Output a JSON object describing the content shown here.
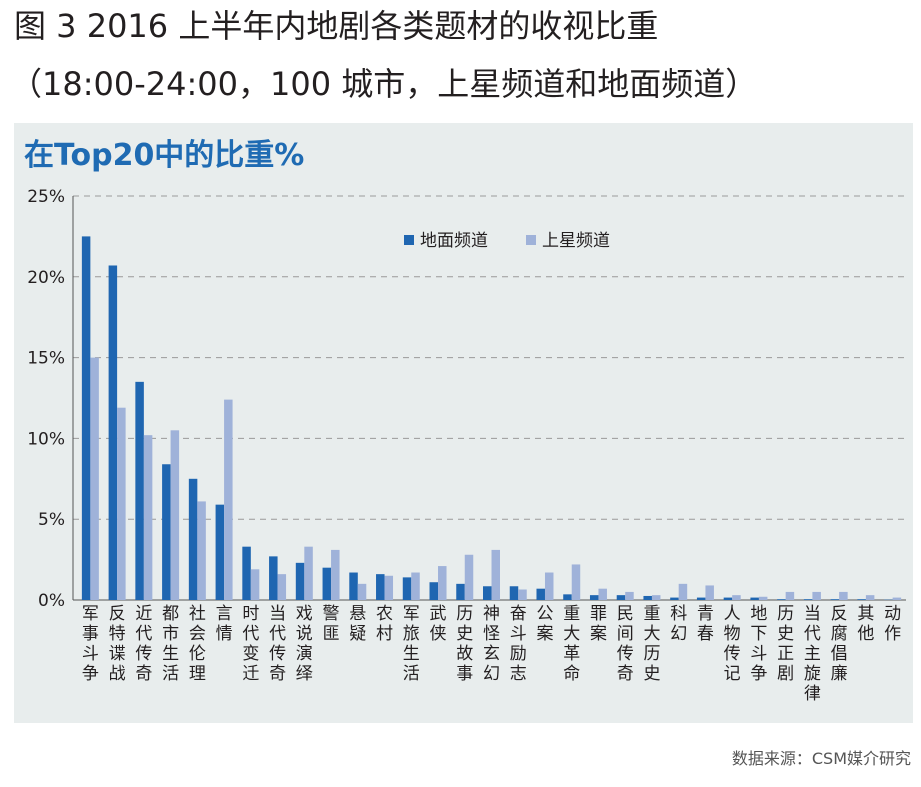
{
  "figure": {
    "title": "图 3 2016 上半年内地剧各类题材的收视比重",
    "subtitle": "（18:00-24:00，100 城市，上星频道和地面频道）",
    "source": "数据来源：CSM媒介研究"
  },
  "colors": {
    "ground": "#1f66b1",
    "satellite": "#9fb2d9",
    "panel_bg": "#e8eded",
    "title_blue": "#1f6bb3"
  },
  "chart_data": {
    "type": "bar",
    "title": "在Top20中的比重%",
    "xlabel": "",
    "ylabel": "",
    "ylim": [
      0,
      25
    ],
    "yticks": [
      0,
      5,
      10,
      15,
      20,
      25
    ],
    "ytick_labels": [
      "0%",
      "5%",
      "10%",
      "15%",
      "20%",
      "25%"
    ],
    "grid": true,
    "legend_position": "top-center",
    "categories": [
      "军事斗争",
      "反特谍战",
      "近代传奇",
      "都市生活",
      "社会伦理",
      "言情",
      "时代变迁",
      "当代传奇",
      "戏说演绎",
      "警匪",
      "悬疑",
      "农村",
      "军旅生活",
      "武侠",
      "历史故事",
      "神怪玄幻",
      "奋斗励志",
      "公案",
      "重大革命",
      "罪案",
      "民间传奇",
      "重大历史",
      "科幻",
      "青春",
      "人物传记",
      "地下斗争",
      "历史正剧",
      "当代主旋律",
      "反腐倡廉",
      "其他",
      "动作"
    ],
    "series": [
      {
        "name": "地面频道",
        "values": [
          22.5,
          20.7,
          13.5,
          8.4,
          7.5,
          5.9,
          3.3,
          2.7,
          2.3,
          2.0,
          1.7,
          1.6,
          1.4,
          1.1,
          1.0,
          0.85,
          0.85,
          0.7,
          0.35,
          0.3,
          0.3,
          0.25,
          0.15,
          0.15,
          0.15,
          0.15,
          0.05,
          0.05,
          0.05,
          0.05,
          0.02
        ]
      },
      {
        "name": "上星频道",
        "values": [
          15.0,
          11.9,
          10.2,
          10.5,
          6.1,
          12.4,
          1.9,
          1.6,
          3.3,
          3.1,
          1.0,
          1.5,
          1.7,
          2.1,
          2.8,
          3.1,
          0.65,
          1.7,
          2.2,
          0.7,
          0.5,
          0.3,
          1.0,
          0.9,
          0.3,
          0.2,
          0.5,
          0.5,
          0.5,
          0.3,
          0.15
        ]
      }
    ]
  }
}
